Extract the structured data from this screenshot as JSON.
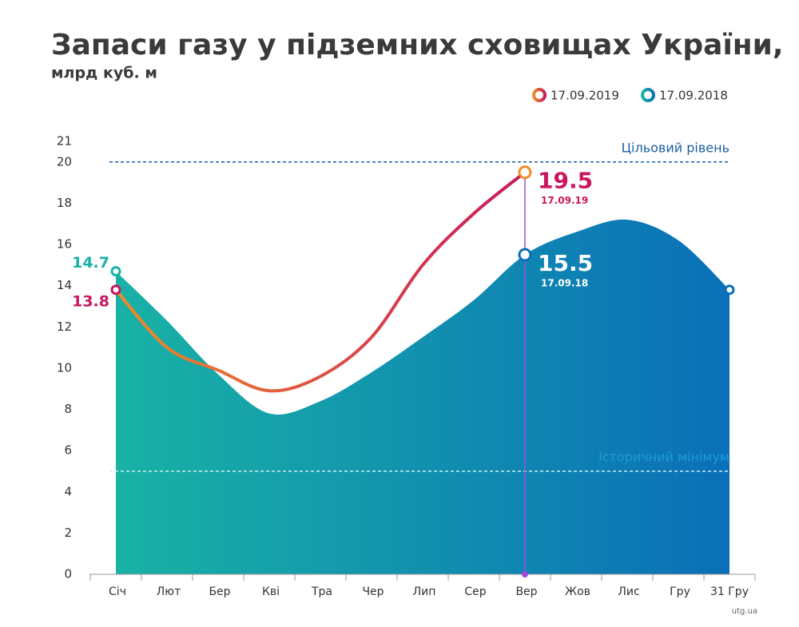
{
  "chart_data": {
    "type": "line-area",
    "title": "Запаси газу у підземних сховищах України,",
    "subtitle": "млрд куб. м",
    "categories": [
      "Січ",
      "Лют",
      "Бер",
      "Кві",
      "Тра",
      "Чер",
      "Лип",
      "Сер",
      "Вер",
      "Жов",
      "Лис",
      "Гру",
      "31 Гру"
    ],
    "series": [
      {
        "name": "17.09.2019",
        "style": "line",
        "colors": [
          "#f28c28",
          "#c8175d"
        ],
        "values": [
          13.8,
          11.0,
          9.9,
          8.9,
          9.6,
          11.5,
          15.0,
          17.5,
          19.5,
          null,
          null,
          null,
          null
        ],
        "point_notes": [
          null,
          null,
          null,
          null,
          null,
          null,
          null,
          null,
          "17.09.19",
          null,
          null,
          null,
          null
        ]
      },
      {
        "name": "17.09.2018",
        "style": "area",
        "colors": [
          "#19b2a5",
          "#0a6fb8"
        ],
        "values": [
          14.7,
          12.3,
          9.7,
          7.8,
          8.4,
          9.8,
          11.5,
          13.3,
          15.5,
          16.6,
          17.2,
          16.2,
          13.8
        ],
        "point_notes": [
          null,
          null,
          null,
          null,
          null,
          null,
          null,
          null,
          "17.09.18",
          null,
          null,
          null,
          null
        ]
      }
    ],
    "ylim": [
      0,
      21
    ],
    "yticks": [
      0,
      2,
      4,
      6,
      8,
      10,
      12,
      14,
      16,
      18,
      20,
      21
    ],
    "reference_lines": [
      {
        "value": 20,
        "label": "Цільовий рівень",
        "line_color": "#1a5fa0",
        "text_color": "#1a5fa0"
      },
      {
        "value": 5,
        "label": "Історичний мінімум",
        "line_color": "#cdeff2",
        "text_color": "#1f9bd7"
      }
    ],
    "legend": "top-right",
    "source": "utg.ua"
  }
}
